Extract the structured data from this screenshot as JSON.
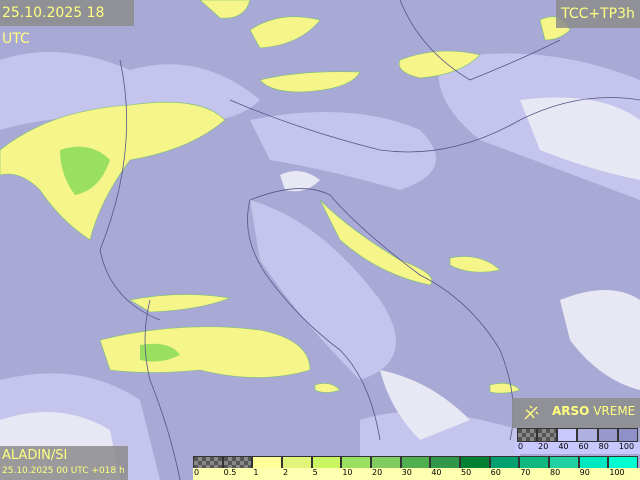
{
  "header": {
    "valid_time": "25.10.2025 18 UTC",
    "product": "TCC+TP3h"
  },
  "model": {
    "name": "ALADIN/SI",
    "run": "25.10.2025 00 UTC +018 h"
  },
  "logo": {
    "brand_bold": "ARSO",
    "brand_light": "VREME",
    "icon": "satellite-dish-icon"
  },
  "precip_legend": {
    "labels": [
      "0",
      "0.5",
      "1",
      "2",
      "5",
      "10",
      "20",
      "30",
      "40",
      "50",
      "60",
      "70",
      "80",
      "90",
      "100"
    ],
    "colors": [
      "checker",
      "checker",
      "#ffff99",
      "#e0f57a",
      "#c8f560",
      "#9ae060",
      "#80cc60",
      "#50b050",
      "#309848",
      "#008030",
      "#00a070",
      "#10b880",
      "#20d0a0",
      "#00e8c0",
      "#00ffd0"
    ]
  },
  "cloud_legend": {
    "labels": [
      "0",
      "20",
      "40",
      "60",
      "80",
      "100"
    ],
    "colors": [
      "checker",
      "checker",
      "#c8c8ff",
      "#b0b0e0",
      "#9898cc",
      "#9090c8"
    ]
  },
  "colors": {
    "label_text": "#ffff80",
    "cloud_base": "#a9a9d6",
    "precip_light": "#f5f58a"
  }
}
